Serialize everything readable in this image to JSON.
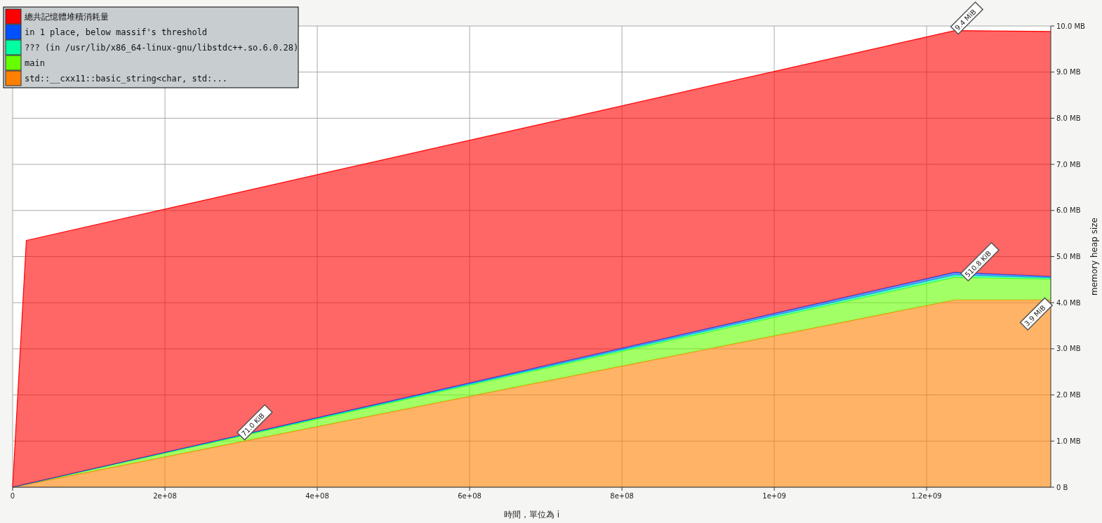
{
  "chart_data": {
    "type": "area",
    "stacked": true,
    "xlabel": "時間，單位為 i",
    "ylabel": "memory heap size",
    "x": [
      0,
      18000000,
      1237000000,
      1363000000
    ],
    "series": [
      {
        "name": "std::__cxx11::basic_string<char, std:...",
        "color": "#ff8000",
        "values": [
          0,
          0.06,
          4.06,
          4.06
        ]
      },
      {
        "name": "main",
        "color": "#66ff00",
        "values": [
          0,
          0.01,
          0.49,
          0.45
        ]
      },
      {
        "name": "??? (in /usr/lib/x86_64-linux-gnu/libstdc++.so.6.0.28)",
        "color": "#00ffa0",
        "values": [
          0,
          0,
          0.05,
          0.03
        ]
      },
      {
        "name": "in 1 place, below massif's threshold",
        "color": "#0050ff",
        "values": [
          0,
          0,
          0.06,
          0.03
        ]
      },
      {
        "name": "總共記憶體堆積消耗量",
        "color": "#ff0000",
        "values": [
          0,
          5.28,
          5.24,
          5.31
        ]
      }
    ],
    "xlim": [
      0,
      1363000000
    ],
    "xticks": [
      0,
      {
        "value": 200000000,
        "label": "2e+08"
      },
      {
        "value": 400000000,
        "label": "4e+08"
      },
      {
        "value": 600000000,
        "label": "6e+08"
      },
      {
        "value": 800000000,
        "label": "8e+08"
      },
      {
        "value": 1000000000,
        "label": "1e+09"
      },
      {
        "value": 1200000000,
        "label": "1.2e+09"
      }
    ],
    "ylim": [
      0,
      10
    ],
    "yticks": [
      {
        "value": 0,
        "label": "0 B"
      },
      {
        "value": 1,
        "label": "1.0 MB"
      },
      {
        "value": 2,
        "label": "2.0 MB"
      },
      {
        "value": 3,
        "label": "3.0 MB"
      },
      {
        "value": 4,
        "label": "4.0 MB"
      },
      {
        "value": 5,
        "label": "5.0 MB"
      },
      {
        "value": 6,
        "label": "6.0 MB"
      },
      {
        "value": 7,
        "label": "7.0 MB"
      },
      {
        "value": 8,
        "label": "8.0 MB"
      },
      {
        "value": 9,
        "label": "9.0 MB"
      },
      {
        "value": 10,
        "label": "10.0 MB"
      }
    ],
    "grid": true,
    "legend": "top left",
    "annotations": [
      {
        "text": "9.4 MiB",
        "x": 1237000000,
        "y": 9.9
      },
      {
        "text": "510.8 KiB",
        "x": 1250000000,
        "y": 4.55
      },
      {
        "text": "71.0 KiB",
        "x": 300000000,
        "y": 1.1
      },
      {
        "text": "3.9 MiB",
        "x": 1363000000,
        "y": 4.06
      }
    ]
  }
}
